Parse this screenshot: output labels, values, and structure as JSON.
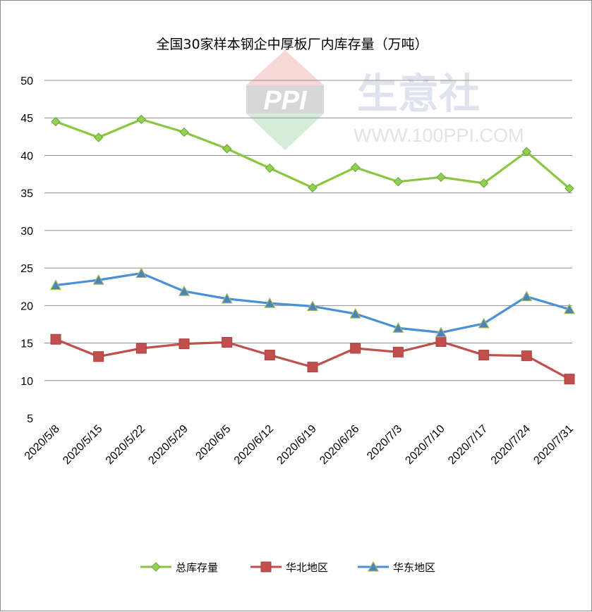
{
  "chart_data": {
    "type": "line",
    "title": "全国30家样本钢企中厚板厂内库存量（万吨）",
    "categories": [
      "2020/5/8",
      "2020/5/15",
      "2020/5/22",
      "2020/5/29",
      "2020/6/5",
      "2020/6/12",
      "2020/6/19",
      "2020/6/26",
      "2020/7/3",
      "2020/7/10",
      "2020/7/17",
      "2020/7/24",
      "2020/7/31"
    ],
    "y_ticks": [
      5,
      10,
      15,
      20,
      25,
      30,
      35,
      40,
      45,
      50
    ],
    "ylim": [
      5,
      50
    ],
    "grid": true,
    "legend_position": "bottom",
    "series": [
      {
        "name": "总库存量",
        "color": "#92d050",
        "line_color": "#8cc63f",
        "marker": "diamond",
        "values": [
          44.5,
          42.4,
          44.8,
          43.1,
          40.9,
          38.3,
          35.7,
          38.4,
          36.5,
          37.1,
          36.3,
          40.5,
          35.6
        ]
      },
      {
        "name": "华北地区",
        "color": "#c0504d",
        "line_color": "#c0504d",
        "marker": "square",
        "values": [
          15.5,
          13.2,
          14.3,
          14.9,
          15.1,
          13.4,
          11.8,
          14.3,
          13.8,
          15.2,
          13.4,
          13.3,
          10.2
        ]
      },
      {
        "name": "华东地区",
        "color": "#4f81bd",
        "line_color": "#4a90d9",
        "marker": "triangle",
        "values": [
          22.7,
          23.4,
          24.3,
          21.9,
          20.9,
          20.3,
          19.9,
          18.9,
          17.0,
          16.4,
          17.6,
          21.2,
          19.5
        ]
      }
    ]
  },
  "watermark": {
    "brand": "PPI",
    "name": "生意社",
    "url": "WWW.100PPI.COM"
  }
}
